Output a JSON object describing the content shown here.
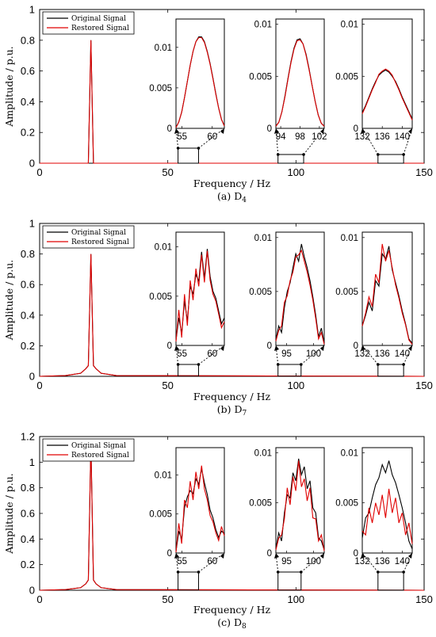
{
  "figure": {
    "legend_original": "Original Signal",
    "legend_restored": "Restored Signal",
    "series_colors": {
      "original": "#000000",
      "restored": "#e00000"
    }
  },
  "chart_data": [
    {
      "type": "line",
      "caption": "(a) D",
      "caption_subscript": "4",
      "xlabel": "Frequency / Hz",
      "ylabel": "Amplitude / p.u.",
      "xlim": [
        0,
        150
      ],
      "ylim": [
        0,
        1
      ],
      "xticks": [
        "0",
        "50",
        "100",
        "150"
      ],
      "yticks": [
        "0",
        "0.2",
        "0.4",
        "0.6",
        "0.8",
        "1"
      ],
      "series": [
        {
          "name": "Original Signal",
          "x": [
            0,
            19,
            20,
            21,
            150
          ],
          "y": [
            0,
            0,
            0.8,
            0,
            0
          ]
        },
        {
          "name": "Restored Signal",
          "x": [
            0,
            19,
            20,
            21,
            150
          ],
          "y": [
            0,
            0,
            0.8,
            0,
            0
          ]
        }
      ],
      "legend": "top-left",
      "insets": [
        {
          "xlim": [
            54,
            62
          ],
          "ylim": [
            0,
            0.0135
          ],
          "xticks": [
            "55",
            "60"
          ],
          "yticks": [
            "0",
            "0.005",
            "0.01"
          ],
          "original": [
            0.0001,
            0.0008,
            0.002,
            0.0038,
            0.0058,
            0.0078,
            0.0095,
            0.0107,
            0.0113,
            0.0113,
            0.0107,
            0.0095,
            0.008,
            0.0062,
            0.0043,
            0.0025,
            0.0011,
            0.0003
          ],
          "restored": [
            0.0001,
            0.0008,
            0.002,
            0.0038,
            0.0058,
            0.0078,
            0.0095,
            0.0107,
            0.0112,
            0.0112,
            0.0106,
            0.0094,
            0.0079,
            0.0061,
            0.0042,
            0.0025,
            0.0011,
            0.0003
          ]
        },
        {
          "xlim": [
            93,
            103
          ],
          "ylim": [
            0,
            0.0105
          ],
          "xticks": [
            "94",
            "98",
            "102"
          ],
          "yticks": [
            "0",
            "0.005",
            "0.01"
          ],
          "original": [
            0.0002,
            0.0006,
            0.0016,
            0.0031,
            0.0048,
            0.0064,
            0.0077,
            0.0085,
            0.0086,
            0.0081,
            0.0071,
            0.0057,
            0.0041,
            0.0026,
            0.0013,
            0.0005,
            0.0002
          ],
          "restored": [
            0.0002,
            0.0006,
            0.0016,
            0.003,
            0.0047,
            0.0063,
            0.0076,
            0.0084,
            0.0085,
            0.0081,
            0.007,
            0.0056,
            0.0041,
            0.0026,
            0.0013,
            0.0005,
            0.0002
          ]
        },
        {
          "xlim": [
            132,
            142
          ],
          "ylim": [
            0,
            0.0105
          ],
          "xticks": [
            "132",
            "136",
            "140"
          ],
          "yticks": [
            "0",
            "0.005",
            "0.01"
          ],
          "original": [
            0.0015,
            0.0022,
            0.003,
            0.0038,
            0.0045,
            0.0051,
            0.0054,
            0.0056,
            0.0054,
            0.005,
            0.0045,
            0.0038,
            0.003,
            0.0023,
            0.0016,
            0.0009
          ],
          "restored": [
            0.0014,
            0.0021,
            0.0029,
            0.0037,
            0.0044,
            0.0052,
            0.0055,
            0.0057,
            0.0055,
            0.0051,
            0.0044,
            0.0037,
            0.0029,
            0.0022,
            0.0015,
            0.0008
          ]
        }
      ]
    },
    {
      "type": "line",
      "caption": "(b) D",
      "caption_subscript": "7",
      "xlabel": "Frequency / Hz",
      "ylabel": "Amplitude / p.u.",
      "xlim": [
        0,
        150
      ],
      "ylim": [
        0,
        1
      ],
      "xticks": [
        "0",
        "50",
        "100",
        "150"
      ],
      "yticks": [
        "0",
        "0.2",
        "0.4",
        "0.6",
        "0.8",
        "1"
      ],
      "series": [
        {
          "name": "Original Signal",
          "x": [
            0,
            10,
            16,
            18,
            19,
            20,
            21,
            22,
            24,
            30,
            150
          ],
          "y": [
            0,
            0.005,
            0.02,
            0.05,
            0.07,
            0.8,
            0.07,
            0.05,
            0.02,
            0.005,
            0
          ]
        },
        {
          "name": "Restored Signal",
          "x": [
            0,
            10,
            16,
            18,
            19,
            20,
            21,
            22,
            24,
            30,
            150
          ],
          "y": [
            0,
            0.005,
            0.02,
            0.05,
            0.07,
            0.8,
            0.07,
            0.05,
            0.02,
            0.005,
            0
          ]
        }
      ],
      "legend": "top-left",
      "insets": [
        {
          "xlim": [
            54,
            62
          ],
          "ylim": [
            0,
            0.0115
          ],
          "xticks": [
            "55",
            "60"
          ],
          "yticks": [
            "0",
            "0.005",
            "0.01"
          ],
          "original": [
            0.0005,
            0.0028,
            0.0012,
            0.0045,
            0.0025,
            0.006,
            0.0052,
            0.0072,
            0.0065,
            0.0095,
            0.0068,
            0.0098,
            0.007,
            0.0055,
            0.0048,
            0.0035,
            0.0022,
            0.0028
          ],
          "restored": [
            0.0004,
            0.0036,
            0.0008,
            0.0052,
            0.002,
            0.0066,
            0.0046,
            0.0078,
            0.006,
            0.0092,
            0.0064,
            0.0096,
            0.0066,
            0.0052,
            0.0045,
            0.0032,
            0.0018,
            0.0024
          ]
        },
        {
          "xlim": [
            93,
            102
          ],
          "ylim": [
            0,
            0.0105
          ],
          "xticks": [
            "95",
            "100"
          ],
          "yticks": [
            "0",
            "0.005",
            "0.01"
          ],
          "original": [
            0.0005,
            0.0018,
            0.0012,
            0.0035,
            0.005,
            0.0058,
            0.0072,
            0.0085,
            0.0078,
            0.0094,
            0.0082,
            0.0072,
            0.006,
            0.0045,
            0.0028,
            0.0008,
            0.0016,
            0.0002
          ],
          "restored": [
            0.0004,
            0.0014,
            0.0018,
            0.004,
            0.0046,
            0.006,
            0.0068,
            0.0082,
            0.0084,
            0.0088,
            0.0078,
            0.0068,
            0.0056,
            0.0042,
            0.0025,
            0.0006,
            0.0012,
            0.0001
          ]
        },
        {
          "xlim": [
            132,
            142
          ],
          "ylim": [
            0,
            0.0105
          ],
          "xticks": [
            "132",
            "136",
            "140"
          ],
          "yticks": [
            "0",
            "0.005",
            "0.01"
          ],
          "original": [
            0.0018,
            0.0028,
            0.004,
            0.0032,
            0.006,
            0.0055,
            0.0085,
            0.008,
            0.0092,
            0.007,
            0.0058,
            0.0046,
            0.0032,
            0.002,
            0.0006,
            0.0002
          ],
          "restored": [
            0.0018,
            0.003,
            0.0045,
            0.0036,
            0.0066,
            0.0058,
            0.0094,
            0.0078,
            0.0088,
            0.0072,
            0.0056,
            0.0044,
            0.003,
            0.0019,
            0.0005,
            0.0001
          ]
        }
      ]
    },
    {
      "type": "line",
      "caption": "(c) D",
      "caption_subscript": "8",
      "xlabel": "Frequency / Hz",
      "ylabel": "Amplitude / p.u.",
      "xlim": [
        0,
        150
      ],
      "ylim": [
        0,
        1.2
      ],
      "xticks": [
        "0",
        "50",
        "100",
        "150"
      ],
      "yticks": [
        "0",
        "0.2",
        "0.4",
        "0.6",
        "0.8",
        "1",
        "1.2"
      ],
      "series": [
        {
          "name": "Original Signal",
          "x": [
            0,
            10,
            16,
            18,
            19,
            20,
            21,
            22,
            24,
            30,
            150
          ],
          "y": [
            0,
            0.005,
            0.02,
            0.05,
            0.08,
            1.15,
            0.08,
            0.05,
            0.02,
            0.005,
            0
          ]
        },
        {
          "name": "Restored Signal",
          "x": [
            0,
            10,
            16,
            18,
            19,
            20,
            21,
            22,
            24,
            30,
            150
          ],
          "y": [
            0,
            0.005,
            0.02,
            0.05,
            0.08,
            1.15,
            0.08,
            0.05,
            0.02,
            0.005,
            0
          ]
        }
      ],
      "legend": "top-left",
      "insets": [
        {
          "xlim": [
            54,
            62
          ],
          "ylim": [
            0,
            0.0135
          ],
          "xticks": [
            "55",
            "60"
          ],
          "yticks": [
            "0",
            "0.005",
            "0.01"
          ],
          "original": [
            0.0002,
            0.0028,
            0.0018,
            0.0058,
            0.0072,
            0.008,
            0.0076,
            0.0095,
            0.0088,
            0.0108,
            0.009,
            0.0075,
            0.0055,
            0.0045,
            0.003,
            0.002,
            0.0028,
            0.0025
          ],
          "restored": [
            0.0001,
            0.0038,
            0.0012,
            0.0068,
            0.0058,
            0.0092,
            0.0068,
            0.0104,
            0.0082,
            0.0112,
            0.0082,
            0.0068,
            0.0048,
            0.004,
            0.0026,
            0.0016,
            0.0034,
            0.0022
          ]
        },
        {
          "xlim": [
            93,
            102
          ],
          "ylim": [
            0,
            0.0105
          ],
          "xticks": [
            "95",
            "100"
          ],
          "yticks": [
            "0",
            "0.005",
            "0.01"
          ],
          "original": [
            0.0004,
            0.002,
            0.0012,
            0.004,
            0.0058,
            0.0055,
            0.008,
            0.0072,
            0.0094,
            0.0078,
            0.0086,
            0.0064,
            0.0072,
            0.0045,
            0.004,
            0.0015,
            0.0012,
            0.0003
          ],
          "restored": [
            0.0003,
            0.0015,
            0.0018,
            0.0034,
            0.0065,
            0.0048,
            0.0076,
            0.0062,
            0.0092,
            0.0066,
            0.0074,
            0.0052,
            0.0065,
            0.0035,
            0.0034,
            0.0012,
            0.0018,
            0.0002
          ]
        },
        {
          "xlim": [
            132,
            142
          ],
          "ylim": [
            0,
            0.0105
          ],
          "xticks": [
            "132",
            "136",
            "140"
          ],
          "yticks": [
            "0",
            "0.005",
            "0.01"
          ],
          "original": [
            0.0015,
            0.0035,
            0.004,
            0.0055,
            0.0068,
            0.0075,
            0.0088,
            0.008,
            0.0092,
            0.0078,
            0.007,
            0.0058,
            0.0045,
            0.003,
            0.0012,
            0.0004
          ],
          "restored": [
            0.0022,
            0.0018,
            0.0045,
            0.003,
            0.005,
            0.0038,
            0.0058,
            0.0035,
            0.0064,
            0.004,
            0.0055,
            0.003,
            0.004,
            0.0018,
            0.003,
            0.0009
          ]
        }
      ]
    }
  ]
}
